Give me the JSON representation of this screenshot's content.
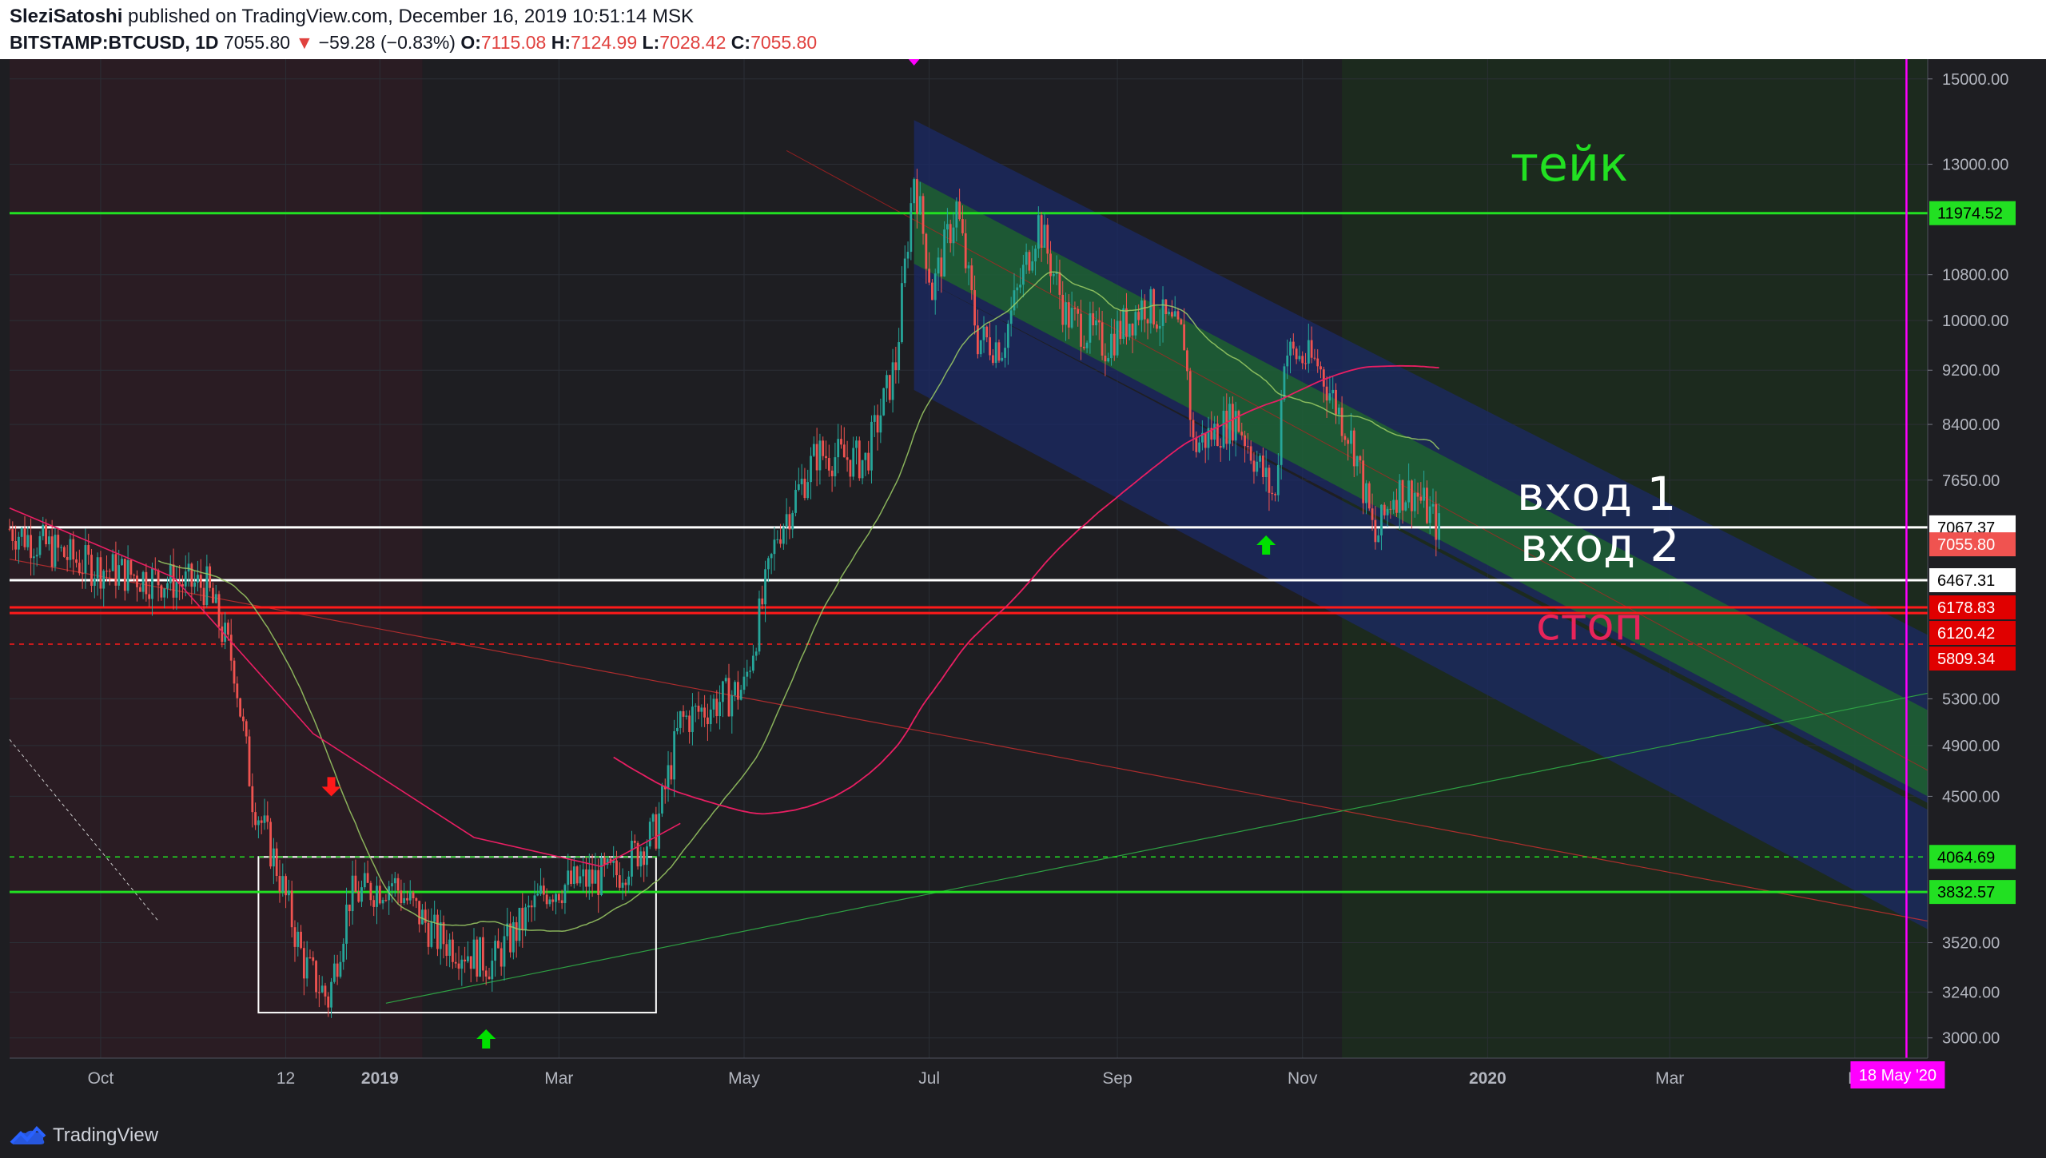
{
  "header": {
    "author": "SleziSatoshi",
    "published_text": "published on TradingView.com, December 16, 2019 10:51:14 MSK",
    "symbol": "BITSTAMP:BTCUSD, 1D",
    "last": "7055.80",
    "change_arrow": "▼",
    "change": "−59.28 (−0.83%)",
    "o_label": "O:",
    "o": "7115.08",
    "h_label": "H:",
    "h": "7124.99",
    "l_label": "L:",
    "l": "7028.42",
    "c_label": "C:",
    "c": "7055.80"
  },
  "footer": {
    "brand": "TradingView"
  },
  "colors": {
    "background": "#1e1e22",
    "up": "#26a69a",
    "down": "#ef5350",
    "green_line": "#22e022",
    "red_line": "#ff1a1a",
    "magenta": "#ff00ff",
    "channel_green": "#1f7a1f",
    "channel_blue": "#1b2a66"
  },
  "chart_data": {
    "type": "candlestick",
    "price_axis_labels": [
      "15000.00",
      "13000.00",
      "10800.00",
      "10000.00",
      "9200.00",
      "8400.00",
      "7650.00",
      "6467.31",
      "5300.00",
      "4900.00",
      "4500.00",
      "3520.00",
      "3240.00",
      "3000.00"
    ],
    "time_axis_labels": [
      "Oct",
      "12",
      "2019",
      "Mar",
      "May",
      "Jul",
      "Sep",
      "Nov",
      "2020",
      "Mar",
      "M"
    ],
    "ylim": [
      2900,
      15300
    ],
    "log_scale": true,
    "price_path": [
      {
        "date": "2018-09-01",
        "price": 7050
      },
      {
        "date": "2018-09-25",
        "price": 6650
      },
      {
        "date": "2018-10-15",
        "price": 6500
      },
      {
        "date": "2018-11-05",
        "price": 6400
      },
      {
        "date": "2018-11-14",
        "price": 5600
      },
      {
        "date": "2018-11-20",
        "price": 4500
      },
      {
        "date": "2018-11-28",
        "price": 4000
      },
      {
        "date": "2018-12-07",
        "price": 3400
      },
      {
        "date": "2018-12-15",
        "price": 3200
      },
      {
        "date": "2018-12-22",
        "price": 3800
      },
      {
        "date": "2019-01-05",
        "price": 3900
      },
      {
        "date": "2019-01-20",
        "price": 3550
      },
      {
        "date": "2019-02-07",
        "price": 3400
      },
      {
        "date": "2019-02-25",
        "price": 3850
      },
      {
        "date": "2019-03-20",
        "price": 3950
      },
      {
        "date": "2019-04-02",
        "price": 4250
      },
      {
        "date": "2019-04-10",
        "price": 5100
      },
      {
        "date": "2019-05-01",
        "price": 5400
      },
      {
        "date": "2019-05-12",
        "price": 7000
      },
      {
        "date": "2019-05-25",
        "price": 8000
      },
      {
        "date": "2019-06-10",
        "price": 7900
      },
      {
        "date": "2019-06-20",
        "price": 9300
      },
      {
        "date": "2019-06-26",
        "price": 12800
      },
      {
        "date": "2019-07-02",
        "price": 10500
      },
      {
        "date": "2019-07-10",
        "price": 12100
      },
      {
        "date": "2019-07-17",
        "price": 9700
      },
      {
        "date": "2019-07-25",
        "price": 9600
      },
      {
        "date": "2019-08-06",
        "price": 11800
      },
      {
        "date": "2019-08-15",
        "price": 10100
      },
      {
        "date": "2019-08-28",
        "price": 9600
      },
      {
        "date": "2019-09-10",
        "price": 10300
      },
      {
        "date": "2019-09-23",
        "price": 9700
      },
      {
        "date": "2019-09-26",
        "price": 8100
      },
      {
        "date": "2019-10-10",
        "price": 8500
      },
      {
        "date": "2019-10-23",
        "price": 7400
      },
      {
        "date": "2019-10-26",
        "price": 9500
      },
      {
        "date": "2019-11-06",
        "price": 9300
      },
      {
        "date": "2019-11-18",
        "price": 8100
      },
      {
        "date": "2019-11-25",
        "price": 6900
      },
      {
        "date": "2019-12-01",
        "price": 7500
      },
      {
        "date": "2019-12-08",
        "price": 7500
      },
      {
        "date": "2019-12-16",
        "price": 7055
      }
    ],
    "horizontal_levels": [
      {
        "price": 11974.52,
        "label": "11974.52",
        "color": "#22e022",
        "style": "solid"
      },
      {
        "price": 7067.37,
        "label": "7067.37",
        "color": "#ffffff",
        "style": "solid"
      },
      {
        "price": 6467.31,
        "label": "6467.31",
        "color": "#ffffff",
        "style": "solid"
      },
      {
        "price": 6178.83,
        "label": "6178.83",
        "color": "#ff1a1a",
        "style": "solid"
      },
      {
        "price": 6120.42,
        "label": "6120.42",
        "color": "#ff1a1a",
        "style": "solid"
      },
      {
        "price": 5809.34,
        "label": "5809.34",
        "color": "#ff1a1a",
        "style": "dashed"
      },
      {
        "price": 4064.69,
        "label": "4064.69",
        "color": "#22e022",
        "style": "dashed"
      },
      {
        "price": 3832.57,
        "label": "3832.57",
        "color": "#22e022",
        "style": "solid"
      }
    ],
    "current_price": {
      "price": 7055.8,
      "label": "7055.80"
    },
    "annotations": [
      {
        "text": "тейк",
        "color": "#22e022"
      },
      {
        "text": "вход 1",
        "color": "#ffffff"
      },
      {
        "text": "вход 2",
        "color": "#ffffff"
      },
      {
        "text": "стоп",
        "color": "#e8245a"
      }
    ],
    "vertical_marker": {
      "date": "2020-05-18",
      "label": "18 May '20"
    }
  }
}
